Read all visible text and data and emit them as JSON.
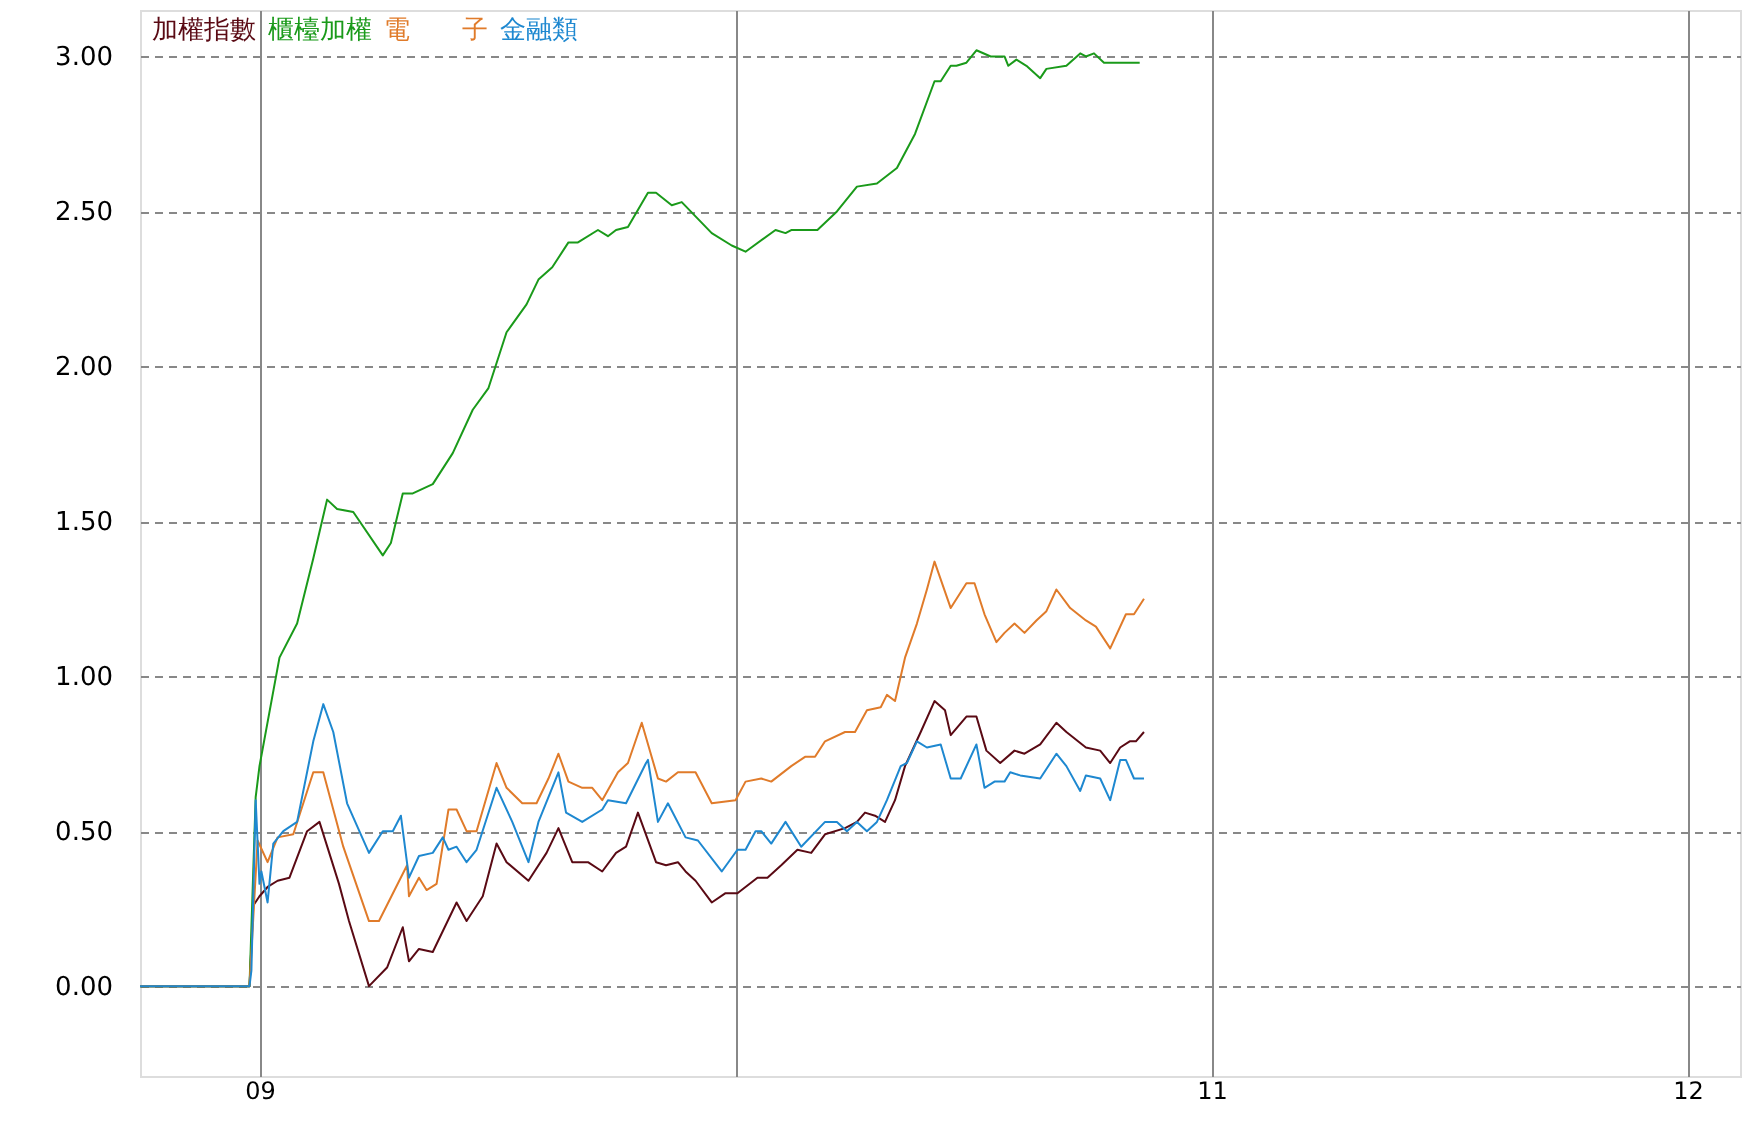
{
  "chart_data": {
    "type": "line",
    "xlim": [
      8.749,
      12.11
    ],
    "ylim": [
      -0.29,
      3.15
    ],
    "xticks": [
      {
        "value": 9,
        "label": "09"
      },
      {
        "value": 10,
        "label": null
      },
      {
        "value": 11,
        "label": "11"
      },
      {
        "value": 12,
        "label": "12"
      }
    ],
    "yticks": [
      {
        "value": 0,
        "label": "0.00"
      },
      {
        "value": 0.5,
        "label": "0.50"
      },
      {
        "value": 1,
        "label": "1.00"
      },
      {
        "value": 1.5,
        "label": "1.50"
      },
      {
        "value": 2,
        "label": "2.00"
      },
      {
        "value": 2.5,
        "label": "2.50"
      },
      {
        "value": 3,
        "label": "3.00"
      }
    ],
    "grid": true,
    "legend": "top left",
    "line_style": "solid",
    "series": [
      {
        "name": "加權指數",
        "color": "#5a0a14",
        "x": [
          8.749,
          8.979,
          8.987,
          9.0,
          9.017,
          9.038,
          9.063,
          9.1,
          9.126,
          9.167,
          9.188,
          9.23,
          9.268,
          9.301,
          9.314,
          9.335,
          9.364,
          9.414,
          9.435,
          9.469,
          9.498,
          9.519,
          9.565,
          9.603,
          9.628,
          9.657,
          9.69,
          9.72,
          9.749,
          9.77,
          9.795,
          9.833,
          9.854,
          9.879,
          9.895,
          9.916,
          9.95,
          9.979,
          10.004,
          10.046,
          10.067,
          10.096,
          10.13,
          10.159,
          10.188,
          10.23,
          10.255,
          10.272,
          10.293,
          10.314,
          10.335,
          10.356,
          10.389,
          10.418,
          10.44,
          10.452,
          10.485,
          10.506,
          10.527,
          10.556,
          10.586,
          10.607,
          10.64,
          10.674,
          10.695,
          10.736,
          10.766,
          10.787,
          10.808,
          10.828,
          10.841,
          10.858
        ],
        "values": [
          0,
          0,
          0.26,
          0.29,
          0.32,
          0.34,
          0.35,
          0.5,
          0.53,
          0.33,
          0.21,
          0.0,
          0.06,
          0.19,
          0.08,
          0.12,
          0.11,
          0.27,
          0.21,
          0.29,
          0.46,
          0.4,
          0.34,
          0.43,
          0.51,
          0.4,
          0.4,
          0.37,
          0.43,
          0.45,
          0.56,
          0.4,
          0.39,
          0.4,
          0.37,
          0.34,
          0.27,
          0.3,
          0.3,
          0.35,
          0.35,
          0.39,
          0.44,
          0.43,
          0.49,
          0.51,
          0.53,
          0.56,
          0.55,
          0.53,
          0.6,
          0.71,
          0.82,
          0.92,
          0.89,
          0.81,
          0.87,
          0.87,
          0.76,
          0.72,
          0.76,
          0.75,
          0.78,
          0.85,
          0.82,
          0.77,
          0.76,
          0.72,
          0.77,
          0.79,
          0.79,
          0.82
        ]
      },
      {
        "name": "櫃檯加權",
        "color": "#1a9a1a",
        "x": [
          8.749,
          8.979,
          8.992,
          9.0,
          9.042,
          9.079,
          9.113,
          9.142,
          9.163,
          9.197,
          9.259,
          9.276,
          9.301,
          9.322,
          9.364,
          9.406,
          9.448,
          9.481,
          9.519,
          9.561,
          9.586,
          9.615,
          9.649,
          9.669,
          9.711,
          9.732,
          9.749,
          9.774,
          9.816,
          9.833,
          9.866,
          9.887,
          9.95,
          9.992,
          10.021,
          10.084,
          10.105,
          10.117,
          10.172,
          10.213,
          10.255,
          10.297,
          10.339,
          10.377,
          10.418,
          10.431,
          10.452,
          10.464,
          10.485,
          10.506,
          10.536,
          10.565,
          10.573,
          10.59,
          10.611,
          10.64,
          10.653,
          10.695,
          10.724,
          10.736,
          10.753,
          10.774,
          10.816,
          10.849
        ],
        "values": [
          0,
          0,
          0.61,
          0.71,
          1.06,
          1.17,
          1.38,
          1.57,
          1.54,
          1.53,
          1.39,
          1.43,
          1.59,
          1.59,
          1.62,
          1.72,
          1.86,
          1.93,
          2.11,
          2.2,
          2.28,
          2.32,
          2.4,
          2.4,
          2.44,
          2.42,
          2.44,
          2.45,
          2.56,
          2.56,
          2.52,
          2.53,
          2.43,
          2.39,
          2.37,
          2.44,
          2.43,
          2.44,
          2.44,
          2.5,
          2.58,
          2.59,
          2.64,
          2.75,
          2.92,
          2.92,
          2.97,
          2.97,
          2.98,
          3.02,
          3.0,
          3.0,
          2.97,
          2.99,
          2.97,
          2.93,
          2.96,
          2.97,
          3.01,
          3.0,
          3.01,
          2.98,
          2.98,
          2.98
        ]
      },
      {
        "name": "電　　子",
        "color": "#e07b2a",
        "x": [
          8.749,
          8.979,
          8.996,
          9.017,
          9.038,
          9.071,
          9.113,
          9.134,
          9.176,
          9.23,
          9.251,
          9.31,
          9.314,
          9.335,
          9.351,
          9.372,
          9.397,
          9.414,
          9.435,
          9.456,
          9.498,
          9.519,
          9.552,
          9.582,
          9.607,
          9.628,
          9.649,
          9.678,
          9.699,
          9.72,
          9.753,
          9.774,
          9.803,
          9.837,
          9.854,
          9.879,
          9.908,
          9.916,
          9.95,
          10.0,
          10.021,
          10.054,
          10.075,
          10.117,
          10.146,
          10.167,
          10.188,
          10.23,
          10.251,
          10.276,
          10.305,
          10.318,
          10.335,
          10.356,
          10.381,
          10.402,
          10.418,
          10.452,
          10.485,
          10.502,
          10.523,
          10.548,
          10.565,
          10.586,
          10.607,
          10.632,
          10.653,
          10.674,
          10.703,
          10.736,
          10.757,
          10.787,
          10.82,
          10.837,
          10.858
        ],
        "values": [
          0,
          0,
          0.47,
          0.4,
          0.48,
          0.49,
          0.69,
          0.69,
          0.45,
          0.21,
          0.21,
          0.39,
          0.29,
          0.35,
          0.31,
          0.33,
          0.57,
          0.57,
          0.5,
          0.5,
          0.72,
          0.64,
          0.59,
          0.59,
          0.67,
          0.75,
          0.66,
          0.64,
          0.64,
          0.6,
          0.69,
          0.72,
          0.85,
          0.67,
          0.66,
          0.69,
          0.69,
          0.69,
          0.59,
          0.6,
          0.66,
          0.67,
          0.66,
          0.71,
          0.74,
          0.74,
          0.79,
          0.82,
          0.82,
          0.89,
          0.9,
          0.94,
          0.92,
          1.06,
          1.17,
          1.28,
          1.37,
          1.22,
          1.3,
          1.3,
          1.2,
          1.11,
          1.14,
          1.17,
          1.14,
          1.18,
          1.21,
          1.28,
          1.22,
          1.18,
          1.16,
          1.09,
          1.2,
          1.2,
          1.25
        ]
      },
      {
        "name": "金融類",
        "color": "#1e88d0",
        "x": [
          8.749,
          8.979,
          8.983,
          8.992,
          9.0,
          9.004,
          9.017,
          9.029,
          9.05,
          9.079,
          9.113,
          9.134,
          9.155,
          9.184,
          9.23,
          9.259,
          9.28,
          9.297,
          9.314,
          9.335,
          9.364,
          9.385,
          9.397,
          9.414,
          9.435,
          9.456,
          9.498,
          9.531,
          9.565,
          9.586,
          9.628,
          9.644,
          9.678,
          9.72,
          9.732,
          9.77,
          9.812,
          9.816,
          9.837,
          9.858,
          9.895,
          9.921,
          9.971,
          10.004,
          10.021,
          10.042,
          10.054,
          10.075,
          10.105,
          10.138,
          10.188,
          10.213,
          10.234,
          10.255,
          10.276,
          10.297,
          10.318,
          10.347,
          10.36,
          10.381,
          10.402,
          10.431,
          10.452,
          10.473,
          10.506,
          10.523,
          10.544,
          10.565,
          10.577,
          10.598,
          10.64,
          10.674,
          10.695,
          10.724,
          10.736,
          10.766,
          10.787,
          10.808,
          10.82,
          10.837,
          10.858
        ],
        "values": [
          0,
          0,
          0.05,
          0.6,
          0.33,
          0.37,
          0.27,
          0.46,
          0.5,
          0.53,
          0.79,
          0.91,
          0.82,
          0.59,
          0.43,
          0.5,
          0.5,
          0.55,
          0.35,
          0.42,
          0.43,
          0.48,
          0.44,
          0.45,
          0.4,
          0.44,
          0.64,
          0.53,
          0.4,
          0.53,
          0.69,
          0.56,
          0.53,
          0.57,
          0.6,
          0.59,
          0.72,
          0.73,
          0.53,
          0.59,
          0.48,
          0.47,
          0.37,
          0.44,
          0.44,
          0.5,
          0.5,
          0.46,
          0.53,
          0.45,
          0.53,
          0.53,
          0.5,
          0.53,
          0.5,
          0.53,
          0.6,
          0.71,
          0.72,
          0.79,
          0.77,
          0.78,
          0.67,
          0.67,
          0.78,
          0.64,
          0.66,
          0.66,
          0.69,
          0.68,
          0.67,
          0.75,
          0.71,
          0.63,
          0.68,
          0.67,
          0.6,
          0.73,
          0.73,
          0.67,
          0.67
        ]
      }
    ]
  }
}
